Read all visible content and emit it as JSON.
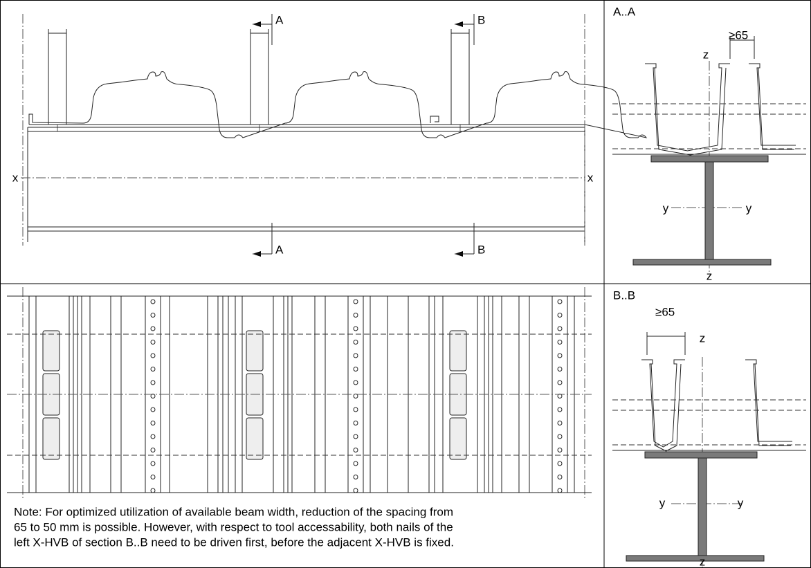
{
  "elevation": {
    "section_a_top": "A",
    "section_b_top": "B",
    "section_a_bottom": "A",
    "section_b_bottom": "B",
    "axis_x_left": "x",
    "axis_x_right": "x"
  },
  "section_aa": {
    "title": "A..A",
    "dimension": "≥65",
    "axis_z_top": "z",
    "axis_z_bottom": "z",
    "axis_y_left": "y",
    "axis_y_right": "y"
  },
  "section_bb": {
    "title": "B..B",
    "dimension": "≥65",
    "axis_z_top": "z",
    "axis_z_bottom": "z",
    "axis_y_left": "y",
    "axis_y_right": "y"
  },
  "plan": {
    "note_lines": [
      "Note: For optimized utilization of available beam width, reduction of the spacing from",
      "65 to 50 mm is possible. However, with respect to tool accessability, both nails of the",
      "left X-HVB of section B..B need to be driven first, before the adjacent X-HVB is fixed."
    ]
  }
}
